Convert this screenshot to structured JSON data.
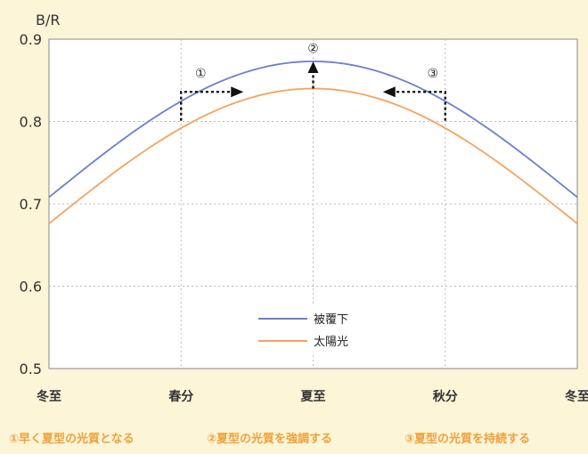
{
  "chart_data": {
    "type": "line",
    "ylabel": "B/R",
    "ylim": [
      0.5,
      0.9
    ],
    "yticks": [
      "0.5",
      "0.6",
      "0.7",
      "0.8",
      "0.9"
    ],
    "categories": [
      "冬至",
      "春分",
      "夏至",
      "秋分",
      "冬至"
    ],
    "series": [
      {
        "name": "被覆下",
        "color": "#6b7fd0",
        "values": [
          0.708,
          0.836,
          0.873,
          0.836,
          0.708
        ]
      },
      {
        "name": "太陽光",
        "color": "#f5a35e",
        "values": [
          0.676,
          0.801,
          0.84,
          0.801,
          0.676
        ]
      }
    ],
    "legend_position": "bottom-center",
    "grid": true,
    "annotations": [
      {
        "marker": "①",
        "text": "早く夏型の光質となる",
        "direction": "right"
      },
      {
        "marker": "②",
        "text": "夏型の光質を強調する",
        "direction": "up"
      },
      {
        "marker": "③",
        "text": "夏型の光質を持続する",
        "direction": "left"
      }
    ]
  }
}
